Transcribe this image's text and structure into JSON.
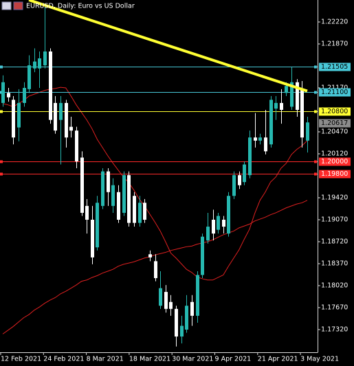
{
  "chart_data": {
    "type": "candlestick",
    "title": "EURUSD, Daily:  Euro vs US Dollar",
    "x_labels": [
      "12 Feb 2021",
      "24 Feb 2021",
      "8 Mar 2021",
      "18 Mar 2021",
      "30 Mar 2021",
      "9 Apr 2021",
      "21 Apr 2021",
      "3 May 2021"
    ],
    "open": [
      1.2093,
      1.2109,
      1.2098,
      1.2054,
      1.2093,
      1.2115,
      1.2148,
      1.2148,
      1.2153,
      1.2175,
      1.2093,
      1.2066,
      1.2093,
      1.2055,
      1.2049,
      1.2006,
      1.1929,
      1.1907,
      1.1863,
      1.1929,
      1.1984,
      1.1929,
      1.1951,
      1.1918,
      1.1978,
      1.1945,
      1.1902,
      1.1934,
      1.1852,
      1.1841,
      1.177,
      1.1792,
      1.1776,
      1.1765,
      1.1721,
      1.1732,
      1.1776,
      1.1754,
      1.1819,
      1.1874,
      1.1907,
      1.1891,
      1.1907,
      1.1885,
      1.1945,
      1.1978,
      1.1967,
      1.1978,
      1.2038,
      1.2033,
      1.2038,
      1.2027,
      1.2084,
      1.2093,
      1.2109,
      1.2087,
      1.2126,
      1.2115,
      1.2033
    ],
    "high": [
      1.2137,
      1.2117,
      1.2104,
      1.2115,
      1.2126,
      1.2169,
      1.218,
      1.2175,
      1.2246,
      1.218,
      1.2104,
      1.2104,
      1.2098,
      1.2071,
      1.2055,
      1.2016,
      1.194,
      1.1929,
      1.1945,
      1.1989,
      1.1989,
      1.1973,
      1.1962,
      1.1984,
      1.1984,
      1.1951,
      1.1945,
      1.194,
      1.1858,
      1.1852,
      1.1825,
      1.1803,
      1.1787,
      1.177,
      1.1754,
      1.1787,
      1.1787,
      1.1825,
      1.1885,
      1.1918,
      1.1923,
      1.1918,
      1.1913,
      1.1951,
      1.1984,
      1.1984,
      1.2,
      1.2049,
      1.2077,
      1.2044,
      1.2082,
      1.2104,
      1.2104,
      1.2115,
      1.2126,
      1.215,
      1.2131,
      1.2128,
      1.2071
    ],
    "low": [
      1.2087,
      1.2095,
      1.2027,
      1.2032,
      1.2087,
      1.2109,
      1.2142,
      1.2117,
      1.2148,
      1.206,
      1.2044,
      1.1995,
      1.2022,
      1.2038,
      1.1989,
      1.1913,
      1.1885,
      1.1836,
      1.1858,
      1.1924,
      1.1929,
      1.1918,
      1.1902,
      1.1913,
      1.1896,
      1.1896,
      1.1896,
      1.1902,
      1.1841,
      1.1809,
      1.1765,
      1.1759,
      1.1754,
      1.1705,
      1.171,
      1.1727,
      1.1738,
      1.1743,
      1.1814,
      1.1869,
      1.1874,
      1.1885,
      1.1885,
      1.188,
      1.194,
      1.1956,
      1.1962,
      1.1973,
      1.2022,
      1.2027,
      1.2011,
      1.2022,
      1.2066,
      1.206,
      1.2104,
      1.2082,
      1.2071,
      1.2022,
      1.2014
    ],
    "close": [
      1.2126,
      1.2102,
      1.2038,
      1.2093,
      1.2117,
      1.2153,
      1.2159,
      1.2164,
      1.2175,
      1.2066,
      1.2049,
      1.2093,
      1.2038,
      1.2049,
      1.2,
      1.1918,
      1.1907,
      1.1847,
      1.1934,
      1.1984,
      1.1951,
      1.1962,
      1.1907,
      1.1978,
      1.1902,
      1.1902,
      1.1934,
      1.1907,
      1.1847,
      1.1814,
      1.1798,
      1.1765,
      1.1765,
      1.1721,
      1.1738,
      1.177,
      1.1754,
      1.1819,
      1.188,
      1.1896,
      1.1885,
      1.1913,
      1.1896,
      1.1945,
      1.1978,
      1.1962,
      1.1995,
      1.2038,
      1.2033,
      1.2038,
      1.2016,
      1.2098,
      1.2093,
      1.2082,
      1.212,
      1.2126,
      1.2082,
      1.2038,
      1.2062
    ],
    "up_color": "#26b8b0",
    "down_color": "#ffffff",
    "ma": [
      {
        "color": "#e02020",
        "values": [
          1.2092,
          1.209,
          1.2087,
          1.2092,
          1.2097,
          1.2104,
          1.2107,
          1.211,
          1.2113,
          1.2115,
          1.2116,
          1.2118,
          1.2117,
          1.2104,
          1.209,
          1.2078,
          1.2066,
          1.2052,
          1.2035,
          1.2022,
          1.2009,
          1.1997,
          1.1986,
          1.1975,
          1.1966,
          1.1954,
          1.194,
          1.1929,
          1.1916,
          1.1903,
          1.1889,
          1.1872,
          1.1854,
          1.1846,
          1.1837,
          1.1828,
          1.1823,
          1.1816,
          1.1813,
          1.1811,
          1.1811,
          1.1815,
          1.1819,
          1.1833,
          1.1846,
          1.1859,
          1.1876,
          1.1892,
          1.1917,
          1.1938,
          1.1951,
          1.1967,
          1.1975,
          1.1989,
          1.1997,
          1.2011,
          1.2019,
          1.2025,
          1.2033
        ]
      },
      {
        "color": "#e02020",
        "values": [
          1.1725,
          1.1731,
          1.1737,
          1.1744,
          1.1751,
          1.1756,
          1.1763,
          1.1768,
          1.1774,
          1.1779,
          1.1783,
          1.1789,
          1.1793,
          1.1798,
          1.1803,
          1.1809,
          1.1811,
          1.1815,
          1.1818,
          1.1822,
          1.1825,
          1.1828,
          1.1833,
          1.1836,
          1.1838,
          1.184,
          1.1843,
          1.1846,
          1.1848,
          1.1851,
          1.1853,
          1.1855,
          1.1858,
          1.186,
          1.1862,
          1.1864,
          1.1865,
          1.1868,
          1.187,
          1.1872,
          1.1875,
          1.1879,
          1.1883,
          1.1886,
          1.1889,
          1.1894,
          1.1897,
          1.19,
          1.1905,
          1.1908,
          1.1911,
          1.1915,
          1.1918,
          1.1922,
          1.1926,
          1.1929,
          1.1932,
          1.1934,
          1.1938
        ]
      }
    ],
    "trendline": {
      "color": "#ffff33",
      "values": [
        1.2246,
        1.2112
      ]
    },
    "levels": [
      {
        "value": 1.21505,
        "color": "#48c8d8",
        "text_color": "#000000",
        "line": true
      },
      {
        "value": 1.211,
        "label": "1.21100",
        "color": "#48c8d8",
        "text_color": "#000000",
        "line": true
      },
      {
        "value": 1.208,
        "label": "1.20800",
        "color": "#ffff33",
        "text_color": "#000000",
        "line": true
      },
      {
        "value": 1.20617,
        "color": "#8c8c8c",
        "text_color": "#000000",
        "line": false
      },
      {
        "value": 1.2,
        "label": "1.20000",
        "color": "#ff2a2a",
        "text_color": "#ffffff",
        "line": true
      },
      {
        "value": 1.198,
        "label": "1.19800",
        "color": "#ff2a2a",
        "text_color": "#ffffff",
        "line": true
      }
    ],
    "ylim": [
      1.16959,
      1.2257
    ],
    "yticks": [
      {
        "value": 1.2222,
        "label": "1.22220"
      },
      {
        "value": 1.2187,
        "label": "1.21870"
      },
      {
        "value": 1.2117,
        "label": "1.21170"
      },
      {
        "value": 1.2047,
        "label": "1.20470"
      },
      {
        "value": 1.2012,
        "label": "1.20120"
      },
      {
        "value": 1.1942,
        "label": "1.19420"
      },
      {
        "value": 1.1907,
        "label": "1.19070"
      },
      {
        "value": 1.1872,
        "label": "1.18720"
      },
      {
        "value": 1.1837,
        "label": "1.18370"
      },
      {
        "value": 1.1802,
        "label": "1.18020"
      },
      {
        "value": 1.1767,
        "label": "1.17670"
      },
      {
        "value": 1.1732,
        "label": "1.17320"
      }
    ]
  }
}
